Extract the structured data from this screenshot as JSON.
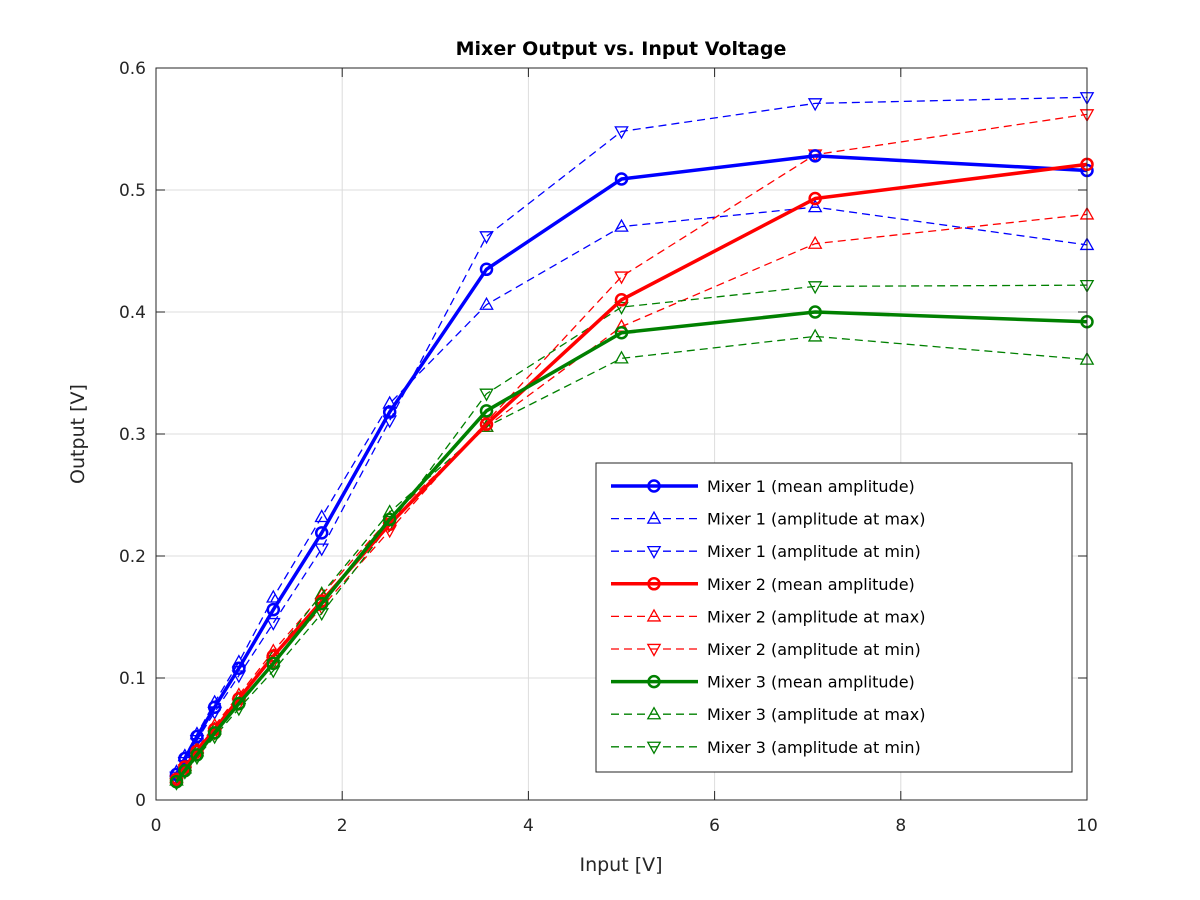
{
  "chart_data": {
    "type": "line",
    "title": "Mixer Output vs. Input Voltage",
    "xlabel": "Input [V]",
    "ylabel": "Output [V]",
    "xlim": [
      0,
      10
    ],
    "ylim": [
      0,
      0.6
    ],
    "xticks": [
      0,
      2,
      4,
      6,
      8,
      10
    ],
    "xtick_labels": [
      "0",
      "2",
      "4",
      "6",
      "8",
      "10"
    ],
    "yticks": [
      0,
      0.1,
      0.2,
      0.3,
      0.4,
      0.5,
      0.6
    ],
    "ytick_labels": [
      "0",
      "0.1",
      "0.2",
      "0.3",
      "0.4",
      "0.5",
      "0.6"
    ],
    "grid": true,
    "legend_position": "lower-right",
    "x": [
      0.22,
      0.31,
      0.44,
      0.63,
      0.89,
      1.26,
      1.78,
      2.51,
      3.55,
      5.0,
      7.08,
      10.0
    ],
    "series": [
      {
        "name": "Mixer 1 (mean amplitude)",
        "color": "#0000ff",
        "style": "solid",
        "marker": "circle",
        "values": [
          0.021,
          0.034,
          0.052,
          0.076,
          0.108,
          0.156,
          0.219,
          0.318,
          0.435,
          0.509,
          0.528,
          0.516
        ]
      },
      {
        "name": "Mixer 1 (amplitude at max)",
        "color": "#0000ff",
        "style": "dashed",
        "marker": "triangle-up",
        "values": [
          0.023,
          0.036,
          0.054,
          0.08,
          0.113,
          0.166,
          0.232,
          0.325,
          0.406,
          0.47,
          0.486,
          0.455
        ]
      },
      {
        "name": "Mixer 1 (amplitude at min)",
        "color": "#0000ff",
        "style": "dashed",
        "marker": "triangle-down",
        "values": [
          0.019,
          0.031,
          0.049,
          0.072,
          0.102,
          0.145,
          0.206,
          0.311,
          0.462,
          0.548,
          0.571,
          0.576
        ]
      },
      {
        "name": "Mixer 2 (mean amplitude)",
        "color": "#ff0000",
        "style": "solid",
        "marker": "circle",
        "values": [
          0.017,
          0.027,
          0.04,
          0.058,
          0.083,
          0.118,
          0.163,
          0.226,
          0.308,
          0.41,
          0.493,
          0.521
        ]
      },
      {
        "name": "Mixer 2 (amplitude at max)",
        "color": "#ff0000",
        "style": "dashed",
        "marker": "triangle-up",
        "values": [
          0.018,
          0.028,
          0.042,
          0.061,
          0.086,
          0.122,
          0.168,
          0.231,
          0.306,
          0.388,
          0.456,
          0.48
        ]
      },
      {
        "name": "Mixer 2 (amplitude at min)",
        "color": "#ff0000",
        "style": "dashed",
        "marker": "triangle-down",
        "values": [
          0.016,
          0.025,
          0.038,
          0.055,
          0.079,
          0.113,
          0.158,
          0.221,
          0.31,
          0.429,
          0.529,
          0.562
        ]
      },
      {
        "name": "Mixer 3 (mean amplitude)",
        "color": "#008000",
        "style": "solid",
        "marker": "circle",
        "values": [
          0.015,
          0.024,
          0.037,
          0.055,
          0.079,
          0.112,
          0.161,
          0.23,
          0.319,
          0.383,
          0.4,
          0.392
        ]
      },
      {
        "name": "Mixer 3 (amplitude at max)",
        "color": "#008000",
        "style": "dashed",
        "marker": "triangle-up",
        "values": [
          0.016,
          0.026,
          0.04,
          0.058,
          0.083,
          0.118,
          0.169,
          0.236,
          0.306,
          0.362,
          0.38,
          0.361
        ]
      },
      {
        "name": "Mixer 3 (amplitude at min)",
        "color": "#008000",
        "style": "dashed",
        "marker": "triangle-down",
        "values": [
          0.014,
          0.023,
          0.035,
          0.052,
          0.075,
          0.106,
          0.153,
          0.226,
          0.333,
          0.404,
          0.421,
          0.422
        ]
      }
    ]
  }
}
